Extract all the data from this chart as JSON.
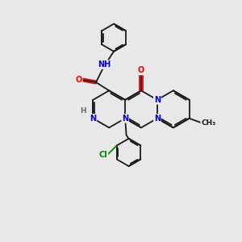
{
  "background_color": "#e8e8e8",
  "bond_color": "#1a1a1a",
  "atom_colors": {
    "N": "#0000ee",
    "O": "#ee0000",
    "Cl": "#008800",
    "C": "#1a1a1a",
    "H": "#666666"
  },
  "font_size": 7.0,
  "figsize": [
    3.0,
    3.0
  ],
  "dpi": 100
}
